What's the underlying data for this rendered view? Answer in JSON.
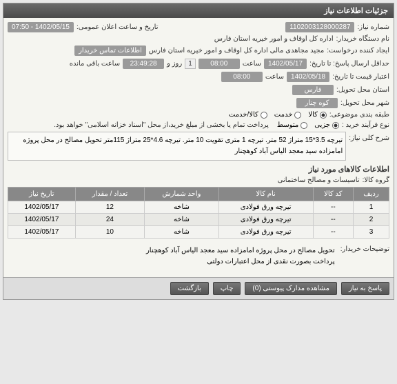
{
  "panel": {
    "title": "جزئیات اطلاعات نیاز"
  },
  "fields": {
    "need_no_label": "شماره نیاز:",
    "need_no": "1102003128000287",
    "announce_label": "تاریخ و ساعت اعلان عمومی:",
    "announce": "1402/05/15 - 07:50",
    "buyer_label": "نام دستگاه خریدار:",
    "buyer": "اداره کل اوقاف و امور خیریه استان فارس",
    "requester_label": "ایجاد کننده درخواست:",
    "requester": "مجید مجاهدی مالی اداره کل اوقاف و امور خیریه استان فارس",
    "contact_link": "اطلاعات تماس خریدار",
    "deadline_label": "حداقل ارسال پاسخ: تا تاریخ:",
    "deadline_date": "1402/05/17",
    "saat1": "ساعت",
    "deadline_time": "08:00",
    "roz": "روز و",
    "roz_val": "1",
    "remain_time": "23:49:28",
    "remain_label": "ساعت باقی مانده",
    "valid_label": "اعتبار قیمت تا تاریخ:",
    "valid_date": "1402/05/18",
    "valid_time": "08:00",
    "loc_label": "استان محل تحویل:",
    "loc": "فارس",
    "city_label": "شهر محل تحویل:",
    "city": "کوه چنار",
    "cat_label": "طبقه بندی موضوعی:",
    "cat_goods": "کالا",
    "cat_service": "خدمت",
    "cat_both": "کالا/خدمت",
    "buy_proc_label": "نوع فرآیند خرید :",
    "buy_proc_low": "جزیی",
    "buy_proc_mid": "متوسط",
    "pay_note": "پرداخت تمام یا بخشی از مبلغ خرید،از محل \"اسناد خزانه اسلامی\" خواهد بود.",
    "desc_label": "شرح کلی نیاز:",
    "desc": "تیرچه 3.5*15 متراژ 52 متر. تیرچه 1 متری تقویت 10 متر. تیرچه 4.6*25 متراژ 115متر تحویل مصالح در محل پروژه امامزاده سید معجد الیاس آباد کوهچنار",
    "group_header": "اطلاعات کالاهای مورد نیاز",
    "group_label": "گروه کالا:",
    "group_val": "تاسیسات و مصالح ساختمانی",
    "notes_label": "توضیحات خریدار:",
    "notes1": "تحویل مصالح در محل پروژه امامزاده سید معجد الیاس آباد کوهچنار",
    "notes2": "پرداخت بصورت نقدی از محل اعتبارات دولتی"
  },
  "table": {
    "headers": [
      "ردیف",
      "کد کالا",
      "نام کالا",
      "واحد شمارش",
      "تعداد / مقدار",
      "تاریخ نیاز"
    ],
    "rows": [
      [
        "1",
        "--",
        "تیرچه ورق فولادی",
        "شاخه",
        "12",
        "1402/05/17"
      ],
      [
        "2",
        "--",
        "تیرچه ورق فولادی",
        "شاخه",
        "24",
        "1402/05/17"
      ],
      [
        "3",
        "--",
        "تیرچه ورق فولادی",
        "شاخه",
        "10",
        "1402/05/17"
      ]
    ]
  },
  "buttons": {
    "reply": "پاسخ به نیاز",
    "attach": "مشاهده مدارک پیوستی (0)",
    "print": "چاپ",
    "back": "بازگشت"
  },
  "colors": {
    "header_bg": "#555",
    "badge_bg": "#9a9a9a",
    "panel_bg": "#f5f5f0"
  }
}
